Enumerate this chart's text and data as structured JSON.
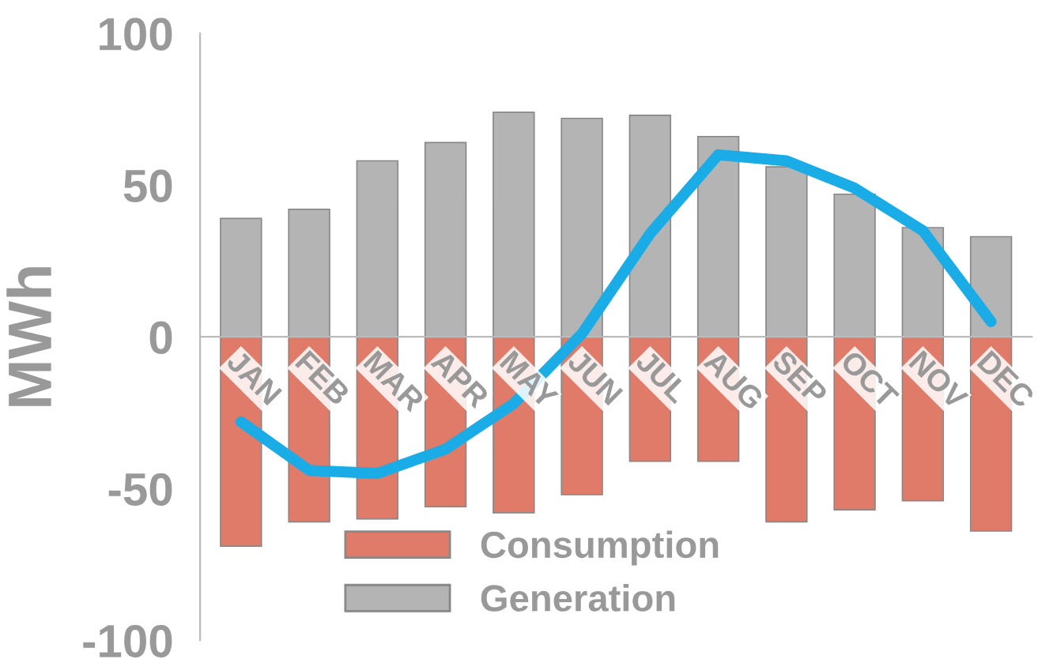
{
  "chart_data": {
    "type": "bar",
    "stacked": true,
    "ylabel": "MWh",
    "categories": [
      "JAN",
      "FEB",
      "MAR",
      "APR",
      "MAY",
      "JUN",
      "JUL",
      "AUG",
      "SEP",
      "OCT",
      "NOV",
      "DEC"
    ],
    "series": [
      {
        "name": "Consumption",
        "color": "#e07b6a",
        "values": [
          -69,
          -61,
          -60,
          -56,
          -58,
          -52,
          -41,
          -41,
          -61,
          -57,
          -54,
          -64
        ]
      },
      {
        "name": "Generation",
        "color": "#b4b4b4",
        "values": [
          39,
          42,
          58,
          64,
          74,
          72,
          73,
          66,
          56,
          47,
          36,
          33
        ]
      },
      {
        "type": "line",
        "color": "#1aace6",
        "values": [
          -28,
          -44,
          -45,
          -37,
          -22,
          1,
          34,
          60,
          58,
          49,
          35,
          5
        ]
      }
    ],
    "ylim": [
      -100,
      100
    ],
    "yticks": [
      -100,
      -50,
      0,
      50,
      100
    ],
    "legend": "bottom",
    "marker": "none",
    "line_style": "solid"
  }
}
